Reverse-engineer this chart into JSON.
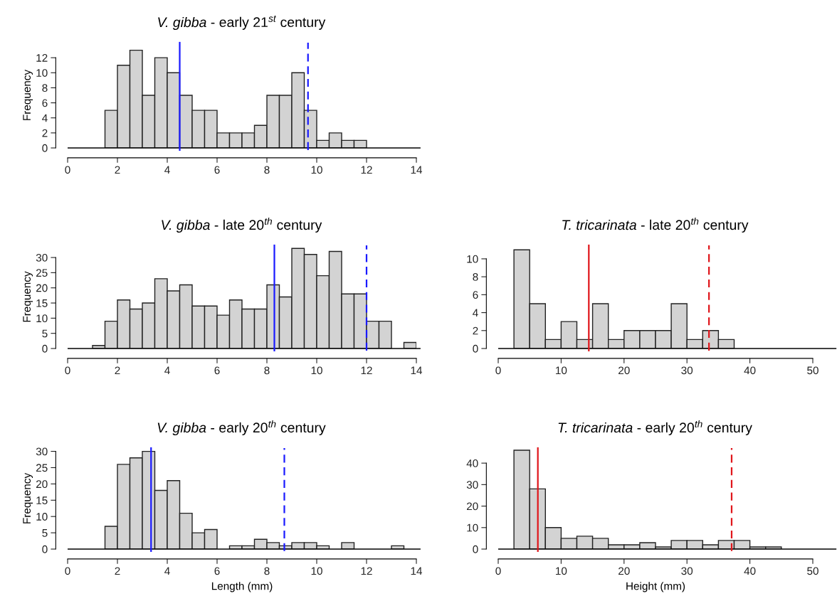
{
  "chart_data": [
    {
      "type": "histogram",
      "title": "V. gibba - early 21$^{st}$ century",
      "ylabel": "Frequency",
      "color": "#d3d3d3",
      "bins": [
        1.5,
        2,
        2.5,
        3,
        3.5,
        4,
        4.5,
        5,
        5.5,
        6,
        6.5,
        7,
        7.5,
        8,
        8.5,
        9,
        9.5,
        10,
        10.5,
        11,
        11.5,
        12
      ],
      "values": [
        5,
        11,
        13,
        7,
        12,
        10,
        7,
        5,
        5,
        2,
        2,
        2,
        3,
        7,
        7,
        10,
        5,
        1,
        2,
        1,
        1
      ],
      "xlim": [
        0,
        14
      ],
      "xticks": [
        0,
        2,
        4,
        6,
        8,
        10,
        12,
        14
      ],
      "ylim": [
        0,
        14
      ],
      "yticks": [
        0,
        2,
        4,
        6,
        8,
        10,
        12
      ],
      "grid": false,
      "ref_lines": [
        {
          "axis": "y",
          "value": 0,
          "color": "#000000",
          "line_style": "solid"
        },
        {
          "axis": "x",
          "value": 4.5,
          "color": "#1a1aff",
          "line_style": "solid"
        },
        {
          "axis": "x",
          "value": 9.65,
          "color": "#1a1aff",
          "line_style": "dashed"
        }
      ]
    },
    {
      "type": "histogram",
      "title": "V. gibba - late 20$^{th}$ century",
      "ylabel": "Frequency",
      "color": "#d3d3d3",
      "bins": [
        1,
        1.5,
        2,
        2.5,
        3,
        3.5,
        4,
        4.5,
        5,
        5.5,
        6,
        6.5,
        7,
        7.5,
        8,
        8.5,
        9,
        9.5,
        10,
        10.5,
        11,
        11.5,
        12,
        12.5,
        13,
        13.5,
        14
      ],
      "values": [
        1,
        9,
        16,
        13,
        15,
        23,
        19,
        21,
        14,
        14,
        11,
        16,
        13,
        13,
        21,
        17,
        33,
        31,
        24,
        32,
        18,
        18,
        9,
        9,
        0,
        2
      ],
      "xlim": [
        0,
        14
      ],
      "xticks": [
        0,
        2,
        4,
        6,
        8,
        10,
        12,
        14
      ],
      "ylim": [
        0,
        34
      ],
      "yticks": [
        0,
        5,
        10,
        15,
        20,
        25,
        30
      ],
      "grid": false,
      "ref_lines": [
        {
          "axis": "y",
          "value": 0,
          "color": "#000000",
          "line_style": "solid"
        },
        {
          "axis": "x",
          "value": 8.3,
          "color": "#1a1aff",
          "line_style": "solid"
        },
        {
          "axis": "x",
          "value": 12.0,
          "color": "#1a1aff",
          "line_style": "dashed"
        }
      ]
    },
    {
      "type": "histogram",
      "title": "T. tricarinata - late 20$^{th}$ century",
      "color": "#d3d3d3",
      "bins": [
        2.5,
        5,
        7.5,
        10,
        12.5,
        15,
        17.5,
        20,
        22.5,
        25,
        27.5,
        30,
        32.5,
        35,
        37.5
      ],
      "values": [
        11,
        5,
        1,
        3,
        1,
        5,
        1,
        2,
        2,
        2,
        5,
        1,
        2,
        1
      ],
      "xlim": [
        0,
        50
      ],
      "xticks": [
        0,
        10,
        20,
        30,
        40,
        50
      ],
      "ylim": [
        0,
        11.5
      ],
      "yticks": [
        0,
        2,
        4,
        6,
        8,
        10
      ],
      "grid": false,
      "ref_lines": [
        {
          "axis": "y",
          "value": 0,
          "color": "#000000",
          "line_style": "solid"
        },
        {
          "axis": "x",
          "value": 14.4,
          "color": "#e0161b",
          "line_style": "solid"
        },
        {
          "axis": "x",
          "value": 33.5,
          "color": "#e0161b",
          "line_style": "dashed"
        }
      ]
    },
    {
      "type": "histogram",
      "title": "V. gibba - early 20$^{th}$ century",
      "ylabel": "Frequency",
      "xlabel": "Length (mm)",
      "color": "#d3d3d3",
      "bins": [
        1.5,
        2,
        2.5,
        3,
        3.5,
        4,
        4.5,
        5,
        5.5,
        6,
        6.5,
        7,
        7.5,
        8,
        8.5,
        9,
        9.5,
        10,
        10.5,
        11,
        11.5,
        12,
        12.5,
        13,
        13.5
      ],
      "values": [
        7,
        26,
        28,
        30,
        18,
        21,
        11,
        5,
        6,
        0,
        1,
        1,
        3,
        2,
        1,
        2,
        2,
        1,
        0,
        2,
        0,
        0,
        0,
        1
      ],
      "xlim": [
        0,
        14
      ],
      "xticks": [
        0,
        2,
        4,
        6,
        8,
        10,
        12,
        14
      ],
      "ylim": [
        0,
        31
      ],
      "yticks": [
        0,
        5,
        10,
        15,
        20,
        25,
        30
      ],
      "grid": false,
      "ref_lines": [
        {
          "axis": "y",
          "value": 0,
          "color": "#000000",
          "line_style": "solid"
        },
        {
          "axis": "x",
          "value": 3.35,
          "color": "#1a1aff",
          "line_style": "solid"
        },
        {
          "axis": "x",
          "value": 8.7,
          "color": "#1a1aff",
          "line_style": "dashed"
        }
      ]
    },
    {
      "type": "histogram",
      "title": "T. tricarinata - early 20$^{th}$ century",
      "xlabel": "Height (mm)",
      "color": "#d3d3d3",
      "bins": [
        2.5,
        5,
        7.5,
        10,
        12.5,
        15,
        17.5,
        20,
        22.5,
        25,
        27.5,
        30,
        32.5,
        35,
        37.5,
        40,
        42.5,
        45
      ],
      "values": [
        46,
        28,
        10,
        5,
        6,
        5,
        2,
        2,
        3,
        1,
        4,
        4,
        2,
        4,
        4,
        1,
        1
      ],
      "xlim": [
        0,
        50
      ],
      "xticks": [
        0,
        10,
        20,
        30,
        40,
        50
      ],
      "ylim": [
        0,
        47
      ],
      "yticks": [
        0,
        10,
        20,
        30,
        40
      ],
      "grid": false,
      "ref_lines": [
        {
          "axis": "y",
          "value": 0,
          "color": "#000000",
          "line_style": "solid"
        },
        {
          "axis": "x",
          "value": 6.3,
          "color": "#e0161b",
          "line_style": "solid"
        },
        {
          "axis": "x",
          "value": 37.1,
          "color": "#e0161b",
          "line_style": "dashed"
        }
      ]
    }
  ]
}
